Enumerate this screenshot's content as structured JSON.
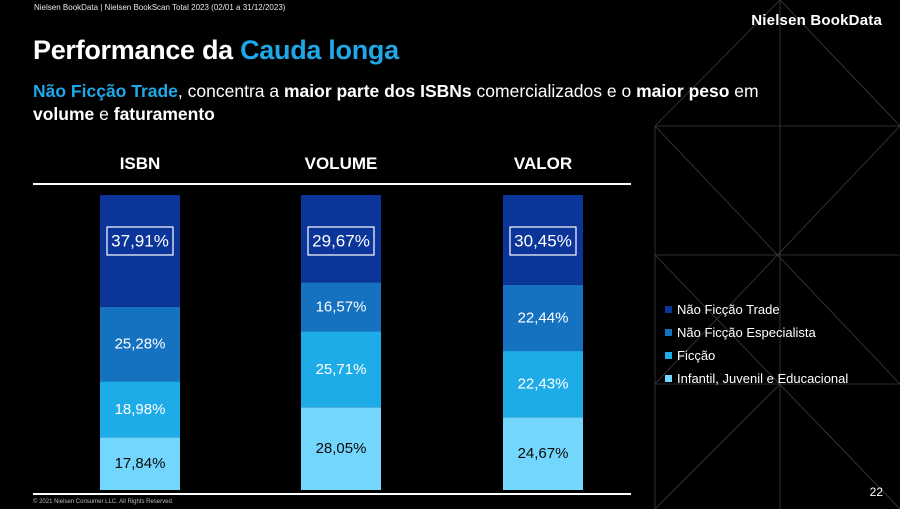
{
  "header": {
    "source": "Nielsen BookData | Nielsen BookScan Total 2023 (02/01 a 31/12/2023)",
    "brand": "Nielsen BookData"
  },
  "title": {
    "prefix": "Performance da ",
    "accent": "Cauda longa"
  },
  "subtitle": {
    "p1": "Não Ficção Trade",
    "p2": ", concentra a ",
    "p3": "maior parte dos ISBNs",
    "p4": " comercializados e o ",
    "p5": "maior peso",
    "p6": " em",
    "p7": "volume",
    "p8": " e ",
    "p9": "faturamento"
  },
  "footer": {
    "copyright": "© 2021 Nielsen Consumer LLC. All Rights Reserved.",
    "page": "22"
  },
  "colors": {
    "nao_ficcao_trade": "#0c3599",
    "nao_ficcao_especialista": "#1572c0",
    "ficcao": "#1eace9",
    "infantil": "#73d6fd",
    "accent": "#1ea8e8"
  },
  "chart_data": {
    "type": "bar",
    "stacked": true,
    "percent": true,
    "categories": [
      "ISBN",
      "VOLUME",
      "VALOR"
    ],
    "series": [
      {
        "name": "Infantil, Juvenil e Educacional",
        "values": [
          17.84,
          28.05,
          24.67
        ],
        "labels": [
          "17,84%",
          "28,05%",
          "24,67%"
        ]
      },
      {
        "name": "Ficção",
        "values": [
          18.98,
          25.71,
          22.43
        ],
        "labels": [
          "18,98%",
          "25,71%",
          "22,43%"
        ]
      },
      {
        "name": "Não Ficção Especialista",
        "values": [
          25.28,
          16.57,
          22.44
        ],
        "labels": [
          "25,28%",
          "16,57%",
          "22,44%"
        ]
      },
      {
        "name": "Não Ficção Trade",
        "values": [
          37.91,
          29.67,
          30.45
        ],
        "labels": [
          "37,91%",
          "29,67%",
          "30,45%"
        ],
        "boxed": true
      }
    ],
    "legend_order": [
      "Não Ficção Trade",
      "Não Ficção Especialista",
      "Ficção",
      "Infantil, Juvenil e Educacional"
    ],
    "legend_position": "right",
    "ylim": [
      0,
      100
    ],
    "grid": false
  }
}
